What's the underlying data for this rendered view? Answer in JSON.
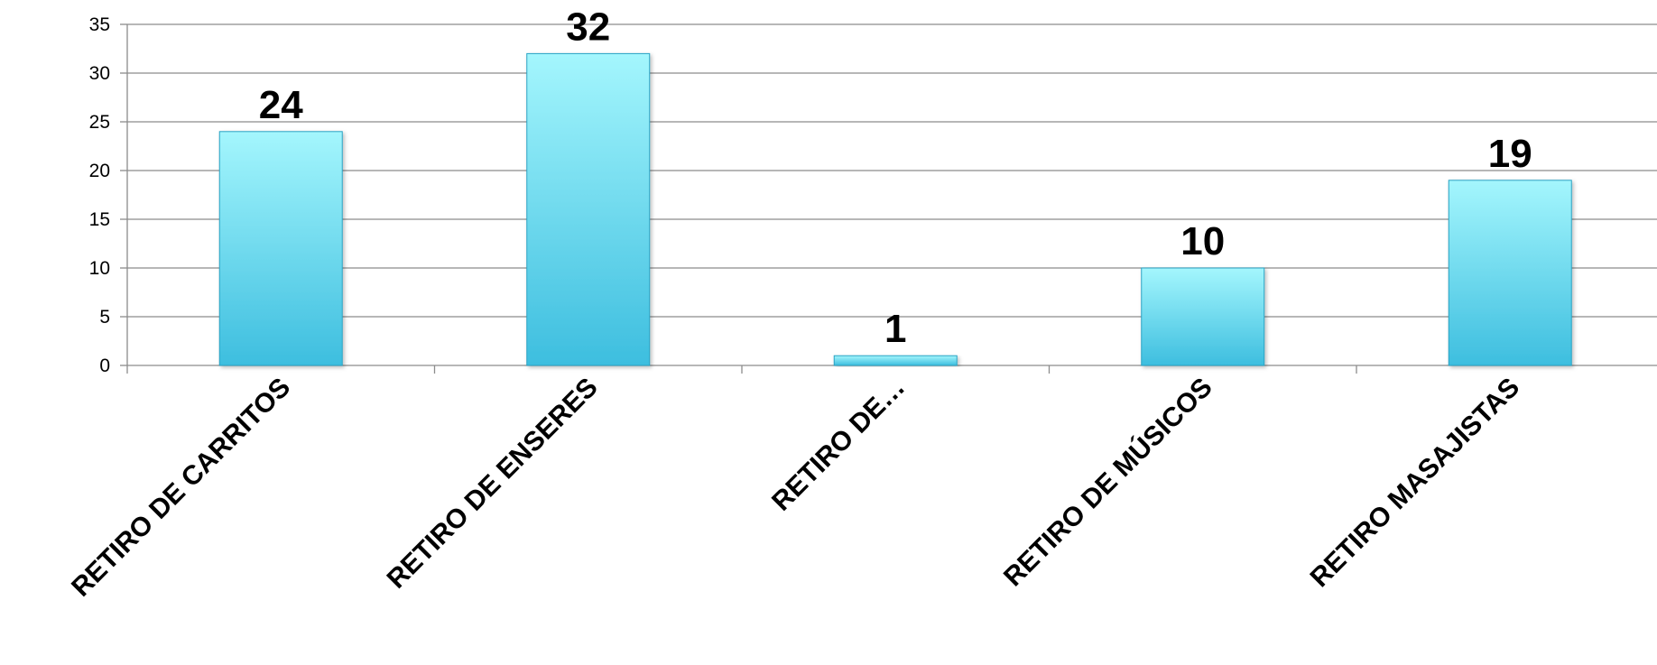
{
  "chart_data": {
    "type": "bar",
    "title": "",
    "xlabel": "",
    "ylabel": "",
    "categories": [
      "RETIRO DE CARRITOS",
      "RETIRO DE ENSERES",
      "RETIRO DE…",
      "RETIRO DE MÚSICOS",
      "RETIRO MASAJISTAS"
    ],
    "values": [
      24,
      32,
      1,
      10,
      19
    ],
    "data_labels": [
      "24",
      "32",
      "1",
      "10",
      "19"
    ],
    "ylim": [
      0,
      35
    ],
    "yticks": [
      "0",
      "5",
      "10",
      "15",
      "20",
      "25",
      "30",
      "35"
    ],
    "grid": true,
    "legend": "none",
    "colors": {
      "bar_top": "#a4f6fd",
      "bar_bottom": "#3dbedf",
      "bar_edge": "#2aa3c4",
      "grid": "#8c8c8c",
      "axis": "#8c8c8c"
    }
  }
}
